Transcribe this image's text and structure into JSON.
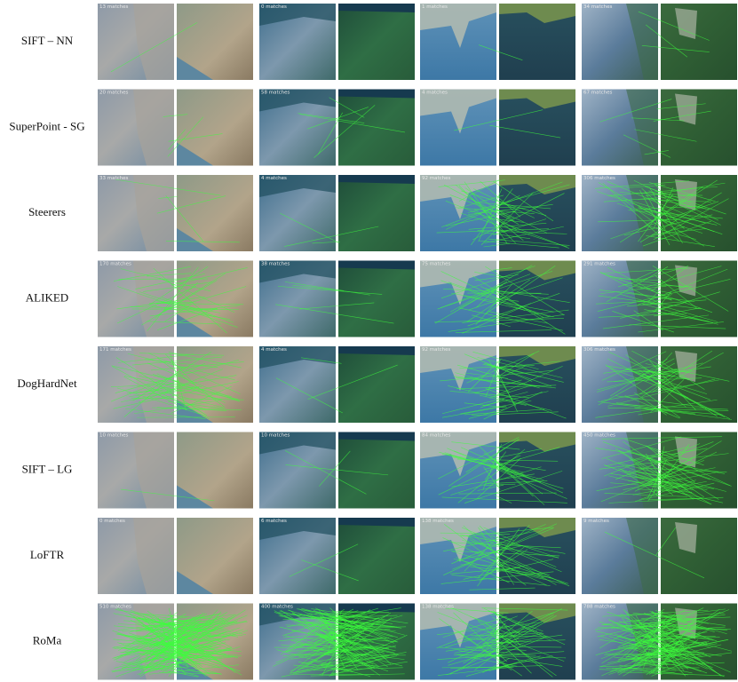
{
  "rows": [
    {
      "label": "SIFT – NN",
      "matches": [
        "13 matches",
        "0 matches",
        "1 matches",
        "34 matches"
      ]
    },
    {
      "label": "SuperPoint - SG",
      "matches": [
        "20 matches",
        "58 matches",
        "4 matches",
        "67 matches"
      ]
    },
    {
      "label": "Steerers",
      "matches": [
        "33 matches",
        "4 matches",
        "92 matches",
        "306 matches"
      ]
    },
    {
      "label": "ALIKED",
      "matches": [
        "170 matches",
        "38 matches",
        "75 matches",
        "291 matches"
      ]
    },
    {
      "label": "DogHardNet",
      "matches": [
        "171 matches",
        "4 matches",
        "92 matches",
        "306 matches"
      ]
    },
    {
      "label": "SIFT – LG",
      "matches": [
        "10 matches",
        "10 matches",
        "84 matches",
        "450 matches"
      ]
    },
    {
      "label": "LoFTR",
      "matches": [
        "0 matches",
        "6 matches",
        "138 matches",
        "9 matches"
      ]
    },
    {
      "label": "RoMa",
      "matches": [
        "510 matches",
        "400 matches",
        "138 matches",
        "788 matches"
      ]
    }
  ]
}
